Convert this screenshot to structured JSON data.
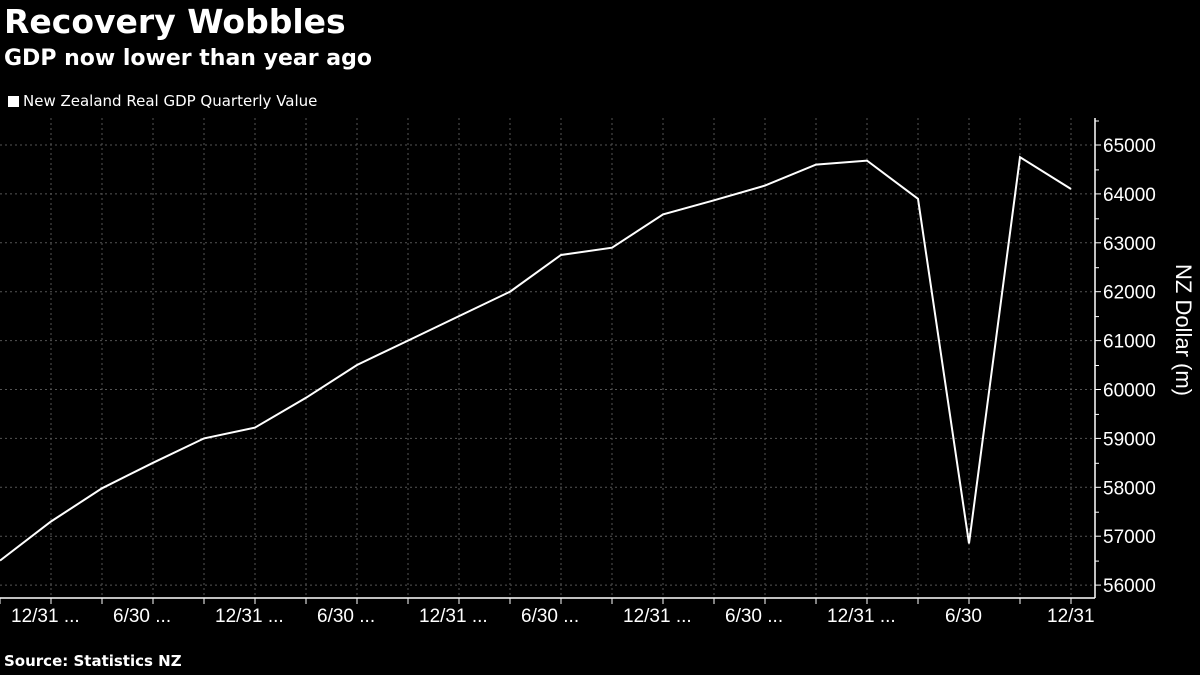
{
  "title": "Recovery Wobbles",
  "subtitle": "GDP now lower than year ago",
  "source": "Source: Statistics NZ",
  "colors": {
    "background": "#000000",
    "line": "#ffffff",
    "grid": "#555555"
  },
  "chart_data": {
    "type": "line",
    "legend": {
      "label": "New Zealand Real GDP Quarterly Value",
      "placement": "top-left"
    },
    "ylabel": "NZ Dollar (m)",
    "ylim": [
      55800,
      65700
    ],
    "yticks": [
      "56000",
      "57000",
      "58000",
      "59000",
      "60000",
      "61000",
      "62000",
      "63000",
      "64000",
      "65000"
    ],
    "grid": true,
    "y_axis_side": "right",
    "x": [
      "2015-09-30",
      "2015-12-31",
      "2016-03-31",
      "2016-06-30",
      "2016-09-30",
      "2016-12-31",
      "2017-03-31",
      "2017-06-30",
      "2017-09-30",
      "2017-12-31",
      "2018-03-31",
      "2018-06-30",
      "2018-09-30",
      "2018-12-31",
      "2019-03-31",
      "2019-06-30",
      "2019-09-30",
      "2019-12-31",
      "2020-03-31",
      "2020-06-30",
      "2020-09-30",
      "2020-12-31"
    ],
    "xtick_labels": [
      {
        "index": 1,
        "label": "12/31 ..."
      },
      {
        "index": 3,
        "label": "6/30 ..."
      },
      {
        "index": 5,
        "label": "12/31 ..."
      },
      {
        "index": 7,
        "label": "6/30 ..."
      },
      {
        "index": 9,
        "label": "12/31 ..."
      },
      {
        "index": 11,
        "label": "6/30 ..."
      },
      {
        "index": 13,
        "label": "12/31 ..."
      },
      {
        "index": 15,
        "label": "6/30 ..."
      },
      {
        "index": 17,
        "label": "12/31 ..."
      },
      {
        "index": 19,
        "label": "6/30"
      },
      {
        "index": 21,
        "label": "12/31"
      }
    ],
    "series": [
      {
        "name": "New Zealand Real GDP Quarterly Value",
        "values": [
          56500,
          57300,
          57980,
          58500,
          59000,
          59220,
          59830,
          60500,
          61000,
          61500,
          62000,
          62750,
          62900,
          63580,
          63870,
          64170,
          64600,
          64680,
          63900,
          56850,
          64750,
          64100
        ]
      }
    ]
  }
}
